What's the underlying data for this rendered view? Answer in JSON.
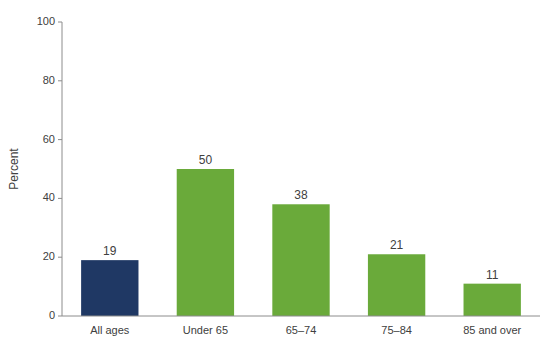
{
  "chart_data": {
    "type": "bar",
    "categories": [
      "All ages",
      "Under 65",
      "65–74",
      "75–84",
      "85 and over"
    ],
    "values": [
      19,
      50,
      38,
      21,
      11
    ],
    "colors": [
      "#1f3864",
      "#6aaa3a",
      "#6aaa3a",
      "#6aaa3a",
      "#6aaa3a"
    ],
    "ylabel": "Percent",
    "ylim": [
      0,
      100
    ],
    "yticks": [
      0,
      20,
      40,
      60,
      80,
      100
    ],
    "grid": false,
    "data_labels": true
  }
}
